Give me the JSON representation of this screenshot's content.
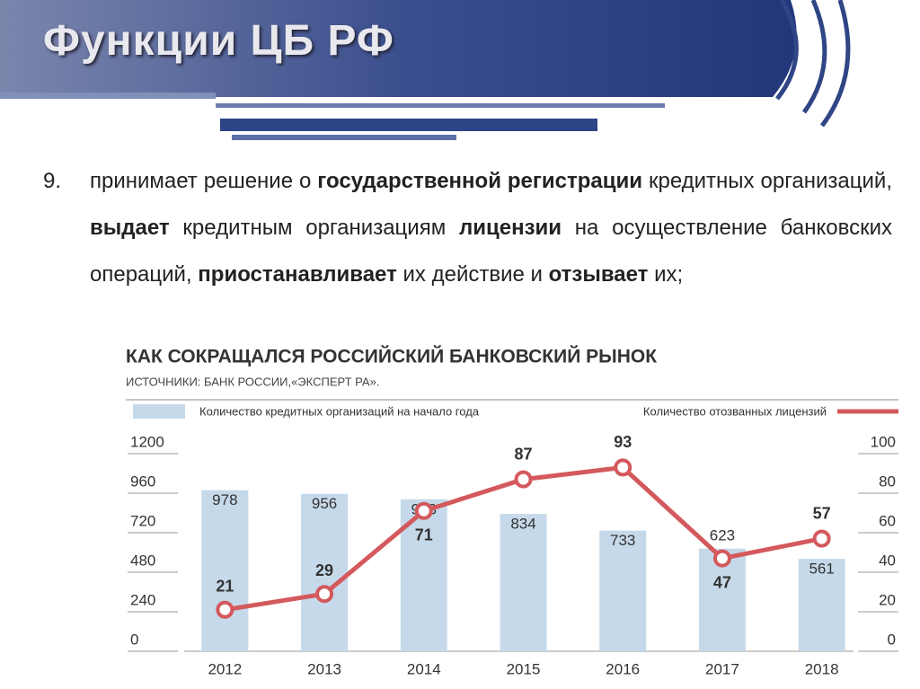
{
  "header": {
    "title": "Функции ЦБ РФ"
  },
  "paragraph": {
    "number": "9.",
    "segments": [
      {
        "text": "принимает решение о ",
        "bold": false
      },
      {
        "text": "государственной регистрации",
        "bold": true
      },
      {
        "text": " кредитных организаций, ",
        "bold": false
      },
      {
        "text": "выдает",
        "bold": true
      },
      {
        "text": " кредитным организациям ",
        "bold": false
      },
      {
        "text": "лицензии",
        "bold": true
      },
      {
        "text": " на осуществление банковских операций, ",
        "bold": false
      },
      {
        "text": "приостанавливает",
        "bold": true
      },
      {
        "text": " их действие и ",
        "bold": false
      },
      {
        "text": "отзывает",
        "bold": true
      },
      {
        "text": " их;",
        "bold": false
      }
    ]
  },
  "chart_data": {
    "type": "bar_line",
    "title": "КАК СОКРАЩАЛСЯ РОССИЙСКИЙ БАНКОВСКИЙ РЫНОК",
    "subtitle": "ИСТОЧНИКИ: БАНК РОССИИ,«ЭКСПЕРТ РА».",
    "categories": [
      "2012",
      "2013",
      "2014",
      "2015",
      "2016",
      "2017",
      "2018"
    ],
    "series": [
      {
        "name": "Количество кредитных организаций на начало года",
        "type": "bar",
        "color": "#c6d9ea",
        "values": [
          978,
          956,
          923,
          834,
          733,
          623,
          561
        ]
      },
      {
        "name": "Количество отозванных лицензий",
        "type": "line",
        "axis": "y2",
        "color": "#d4595c",
        "values": [
          21,
          29,
          71,
          87,
          93,
          47,
          57
        ]
      }
    ],
    "ylim": [
      0,
      1200
    ],
    "yticks": [
      0,
      240,
      480,
      720,
      960,
      1200
    ],
    "y2lim": [
      0,
      100
    ],
    "y2ticks": [
      0,
      20,
      40,
      60,
      80,
      100
    ]
  }
}
